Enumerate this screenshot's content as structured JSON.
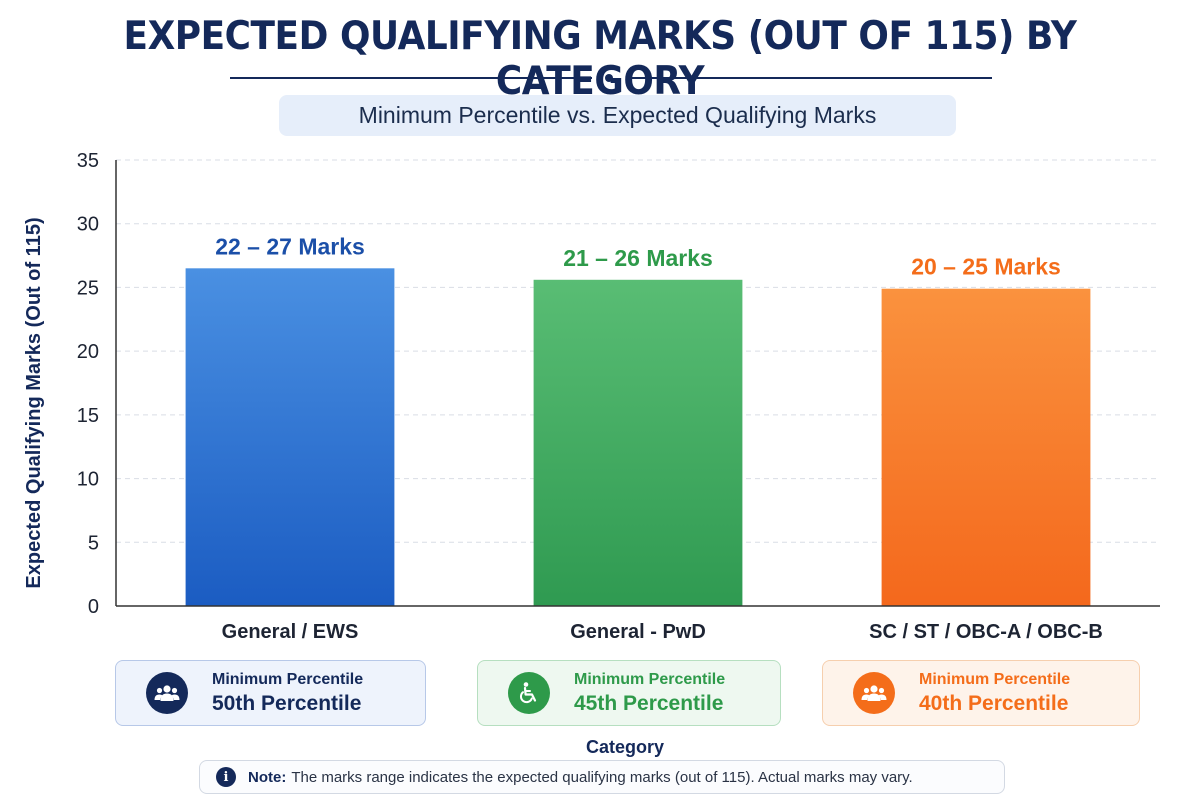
{
  "title": "EXPECTED QUALIFYING MARKS (OUT OF 115) BY CATEGORY",
  "subtitle": "Minimum Percentile vs. Expected Qualifying Marks",
  "chart_data": {
    "type": "bar",
    "categories": [
      "General / EWS",
      "General - PwD",
      "SC / ST / OBC-A / OBC-B"
    ],
    "values": [
      26.5,
      25.6,
      24.9
    ],
    "data_labels": [
      "22 – 27 Marks",
      "21 – 26 Marks",
      "20 – 25 Marks"
    ],
    "colors": [
      "#2f6ed6",
      "#3fae5e",
      "#f6792a"
    ],
    "label_colors": [
      "#1b4fa8",
      "#2e9a4a",
      "#f46d1a"
    ],
    "xlabel": "Category",
    "ylabel": "Expected Qualifying Marks (Out of 115)",
    "ylim": [
      0,
      35
    ],
    "yticks": [
      0,
      5,
      10,
      15,
      20,
      25,
      30,
      35
    ],
    "grid": true
  },
  "legend": [
    {
      "label": "Minimum Percentile",
      "value": "50th Percentile",
      "icon": "people-group-icon",
      "color": "#14295a",
      "text_color": "#14295a",
      "bg": "#eef3fc",
      "border": "#b7c8e8"
    },
    {
      "label": "Minimum Percentile",
      "value": "45th Percentile",
      "icon": "wheelchair-icon",
      "color": "#2e9a4a",
      "text_color": "#2e9a4a",
      "bg": "#eef8f0",
      "border": "#b6dfc0"
    },
    {
      "label": "Minimum Percentile",
      "value": "40th Percentile",
      "icon": "people-group-icon",
      "color": "#f46d1a",
      "text_color": "#f46d1a",
      "bg": "#fef3ea",
      "border": "#f6cfae"
    }
  ],
  "note": {
    "prefix": "Note:",
    "text": "The marks range indicates the expected qualifying marks (out of 115). Actual marks may vary."
  }
}
